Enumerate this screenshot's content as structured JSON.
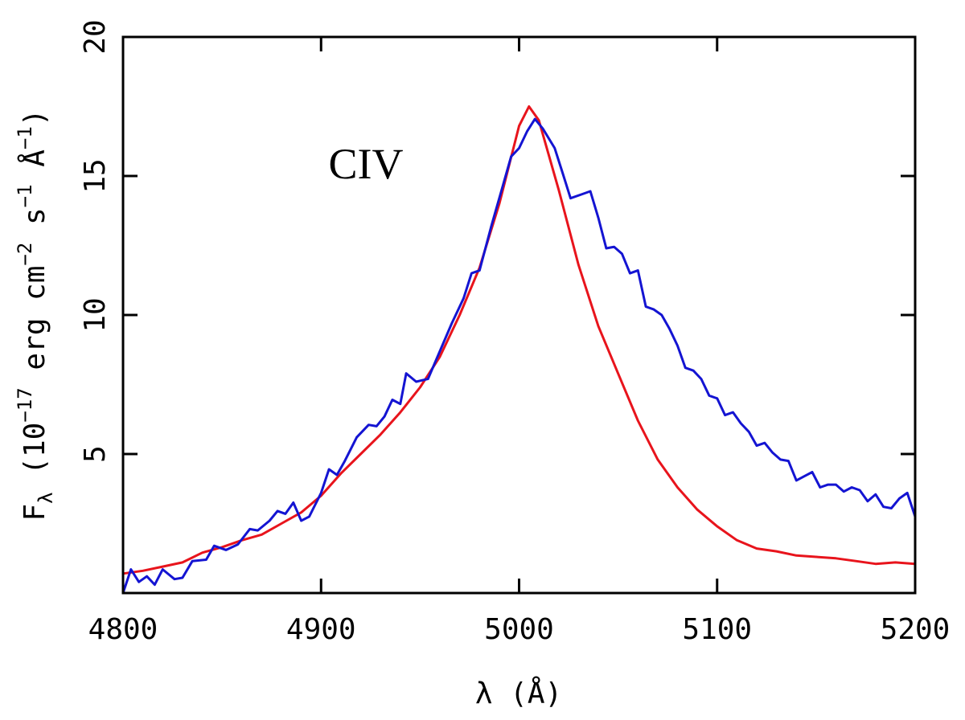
{
  "chart_data": {
    "type": "line",
    "xlabel": "λ (Å)",
    "ylabel": [
      "F",
      "λ",
      " (10",
      "−17",
      " erg cm",
      "−2",
      " s",
      "−1",
      " Å",
      "−1",
      ")"
    ],
    "annotation": "CIV",
    "xlim": [
      4800,
      5200
    ],
    "xticks": [
      4800,
      4900,
      5000,
      5100,
      5200
    ],
    "ylim": [
      0,
      20
    ],
    "yticks": [
      5,
      10,
      15,
      20
    ],
    "series": [
      {
        "color": "#e8141c",
        "x": [
          4800,
          4810,
          4820,
          4830,
          4840,
          4850,
          4860,
          4870,
          4880,
          4890,
          4900,
          4910,
          4920,
          4930,
          4940,
          4950,
          4960,
          4970,
          4980,
          4990,
          5000,
          5005,
          5010,
          5020,
          5030,
          5040,
          5050,
          5060,
          5070,
          5080,
          5090,
          5100,
          5110,
          5120,
          5130,
          5140,
          5150,
          5160,
          5170,
          5180,
          5190,
          5200
        ],
        "values": [
          0.7,
          0.8,
          0.95,
          1.1,
          1.45,
          1.65,
          1.9,
          2.1,
          2.5,
          2.9,
          3.5,
          4.3,
          5.0,
          5.7,
          6.5,
          7.4,
          8.5,
          10.0,
          11.7,
          14.0,
          16.8,
          17.5,
          17.0,
          14.5,
          11.8,
          9.6,
          7.9,
          6.2,
          4.8,
          3.8,
          3.0,
          2.4,
          1.9,
          1.6,
          1.5,
          1.35,
          1.3,
          1.25,
          1.15,
          1.05,
          1.1,
          1.05
        ]
      },
      {
        "color": "#1414d2",
        "x": [
          4800,
          4804,
          4808,
          4812,
          4816,
          4820,
          4826,
          4830,
          4835,
          4842,
          4846,
          4852,
          4858,
          4864,
          4868,
          4874,
          4878,
          4882,
          4886,
          4890,
          4894,
          4900,
          4904,
          4908,
          4912,
          4918,
          4924,
          4928,
          4932,
          4936,
          4940,
          4943,
          4948,
          4954,
          4960,
          4966,
          4972,
          4976,
          4980,
          4986,
          4992,
          4996,
          5000,
          5004,
          5008,
          5012,
          5018,
          5022,
          5026,
          5032,
          5036,
          5040,
          5044,
          5048,
          5052,
          5056,
          5060,
          5064,
          5068,
          5072,
          5076,
          5080,
          5084,
          5088,
          5092,
          5096,
          5100,
          5104,
          5108,
          5112,
          5116,
          5120,
          5124,
          5128,
          5132,
          5136,
          5140,
          5144,
          5148,
          5152,
          5156,
          5160,
          5164,
          5168,
          5172,
          5176,
          5180,
          5184,
          5188,
          5192,
          5196,
          5200
        ],
        "values": [
          0.0,
          0.85,
          0.4,
          0.6,
          0.3,
          0.85,
          0.5,
          0.55,
          1.15,
          1.2,
          1.7,
          1.55,
          1.75,
          2.3,
          2.25,
          2.6,
          2.95,
          2.85,
          3.25,
          2.6,
          2.75,
          3.6,
          4.45,
          4.25,
          4.75,
          5.6,
          6.05,
          6.0,
          6.35,
          6.95,
          6.8,
          7.9,
          7.6,
          7.7,
          8.7,
          9.7,
          10.6,
          11.5,
          11.6,
          13.2,
          14.7,
          15.7,
          16.0,
          16.6,
          17.05,
          16.7,
          16.0,
          15.1,
          14.2,
          14.35,
          14.45,
          13.5,
          12.4,
          12.45,
          12.2,
          11.5,
          11.6,
          10.3,
          10.2,
          10.0,
          9.5,
          8.9,
          8.1,
          8.0,
          7.7,
          7.1,
          7.0,
          6.4,
          6.5,
          6.1,
          5.8,
          5.3,
          5.4,
          5.05,
          4.8,
          4.75,
          4.05,
          4.2,
          4.35,
          3.8,
          3.9,
          3.9,
          3.65,
          3.8,
          3.7,
          3.3,
          3.55,
          3.1,
          3.05,
          3.4,
          3.6,
          2.75
        ]
      }
    ]
  }
}
